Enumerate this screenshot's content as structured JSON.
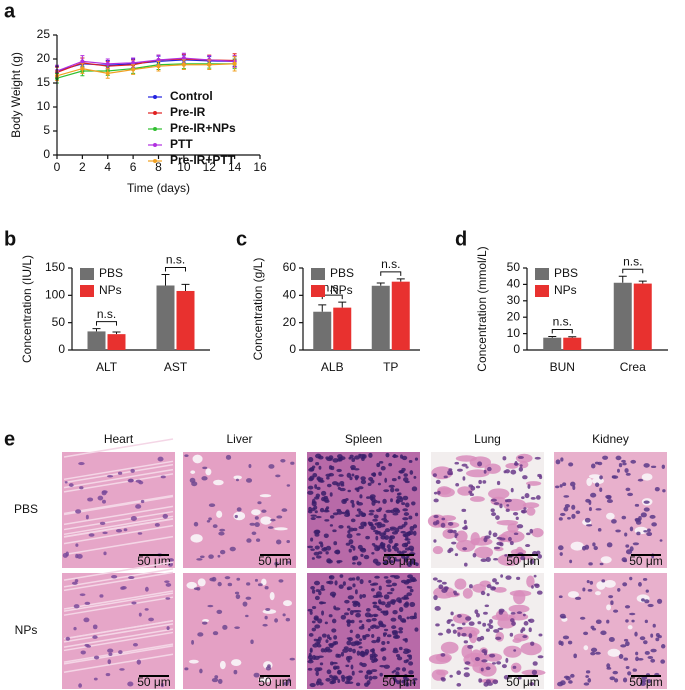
{
  "chart_data": [
    {
      "type": "line",
      "label": "a",
      "xlabel": "Time (days)",
      "ylabel": "Body Weight (g)",
      "x": [
        0,
        2,
        4,
        6,
        8,
        10,
        12,
        14
      ],
      "xlim": [
        0,
        16
      ],
      "xticks": [
        0,
        2,
        4,
        6,
        8,
        10,
        12,
        14,
        16
      ],
      "ylim": [
        0,
        25
      ],
      "yticks": [
        0,
        5,
        10,
        15,
        20,
        25
      ],
      "series": [
        {
          "name": "Control",
          "color": "#2323e0",
          "values": [
            17.5,
            19.0,
            18.7,
            19.0,
            19.5,
            19.8,
            19.6,
            19.5
          ],
          "errors": [
            1.0,
            1.2,
            1.0,
            1.0,
            1.1,
            1.0,
            0.9,
            1.0
          ]
        },
        {
          "name": "Pre-IR",
          "color": "#e02020",
          "values": [
            17.2,
            19.2,
            18.5,
            18.8,
            19.8,
            20.0,
            19.8,
            19.7
          ],
          "errors": [
            1.1,
            1.0,
            1.0,
            1.0,
            1.0,
            1.0,
            1.0,
            1.4
          ]
        },
        {
          "name": "Pre-IR+NPs",
          "color": "#2fbf2f",
          "values": [
            16.0,
            17.5,
            17.5,
            18.0,
            18.8,
            19.0,
            19.0,
            19.0
          ],
          "errors": [
            1.0,
            1.0,
            0.9,
            1.0,
            1.0,
            1.0,
            0.9,
            1.0
          ]
        },
        {
          "name": "PTT",
          "color": "#b030e0",
          "values": [
            17.5,
            19.5,
            19.0,
            19.2,
            19.8,
            20.2,
            19.8,
            19.5
          ],
          "errors": [
            1.2,
            1.2,
            1.0,
            1.0,
            1.0,
            1.0,
            0.9,
            1.2
          ]
        },
        {
          "name": "Pre-IR+PTT",
          "color": "#f0a020",
          "values": [
            16.5,
            18.0,
            17.0,
            17.8,
            18.5,
            18.8,
            18.8,
            19.0
          ],
          "errors": [
            1.0,
            1.0,
            1.0,
            1.0,
            1.0,
            1.0,
            1.0,
            1.5
          ]
        }
      ]
    },
    {
      "type": "bar",
      "label": "b",
      "ylabel": "Concentration (IU/L)",
      "categories": [
        "ALT",
        "AST"
      ],
      "annotations": [
        "n.s.",
        "n.s."
      ],
      "ylim": [
        0,
        150
      ],
      "yticks": [
        0,
        50,
        100,
        150
      ],
      "series": [
        {
          "name": "PBS",
          "color": "#707070",
          "values": [
            34,
            118
          ],
          "errors": [
            5,
            20
          ]
        },
        {
          "name": "NPs",
          "color": "#e8312f",
          "values": [
            29,
            108
          ],
          "errors": [
            4,
            12
          ]
        }
      ]
    },
    {
      "type": "bar",
      "label": "c",
      "ylabel": "Concentration (g/L)",
      "categories": [
        "ALB",
        "TP"
      ],
      "annotations": [
        "n.s.",
        "n.s."
      ],
      "ylim": [
        0,
        60
      ],
      "yticks": [
        0,
        20,
        40,
        60
      ],
      "series": [
        {
          "name": "PBS",
          "color": "#707070",
          "values": [
            28,
            47
          ],
          "errors": [
            5,
            2
          ]
        },
        {
          "name": "NPs",
          "color": "#e8312f",
          "values": [
            31,
            50
          ],
          "errors": [
            4,
            2
          ]
        }
      ]
    },
    {
      "type": "bar",
      "label": "d",
      "ylabel": "Concentration (mmol/L)",
      "categories": [
        "BUN",
        "Crea"
      ],
      "annotations": [
        "n.s.",
        "n.s."
      ],
      "ylim": [
        0,
        50
      ],
      "yticks": [
        0,
        10,
        20,
        30,
        40,
        50
      ],
      "series": [
        {
          "name": "PBS",
          "color": "#707070",
          "values": [
            7.5,
            41
          ],
          "errors": [
            0.7,
            4
          ]
        },
        {
          "name": "NPs",
          "color": "#e8312f",
          "values": [
            7.5,
            40.5
          ],
          "errors": [
            0.6,
            1.5
          ]
        }
      ]
    }
  ],
  "histology": {
    "label": "e",
    "columns": [
      "Heart",
      "Liver",
      "Spleen",
      "Lung",
      "Kidney"
    ],
    "rows": [
      "PBS",
      "NPs"
    ],
    "scale_bar": "50 μm"
  }
}
